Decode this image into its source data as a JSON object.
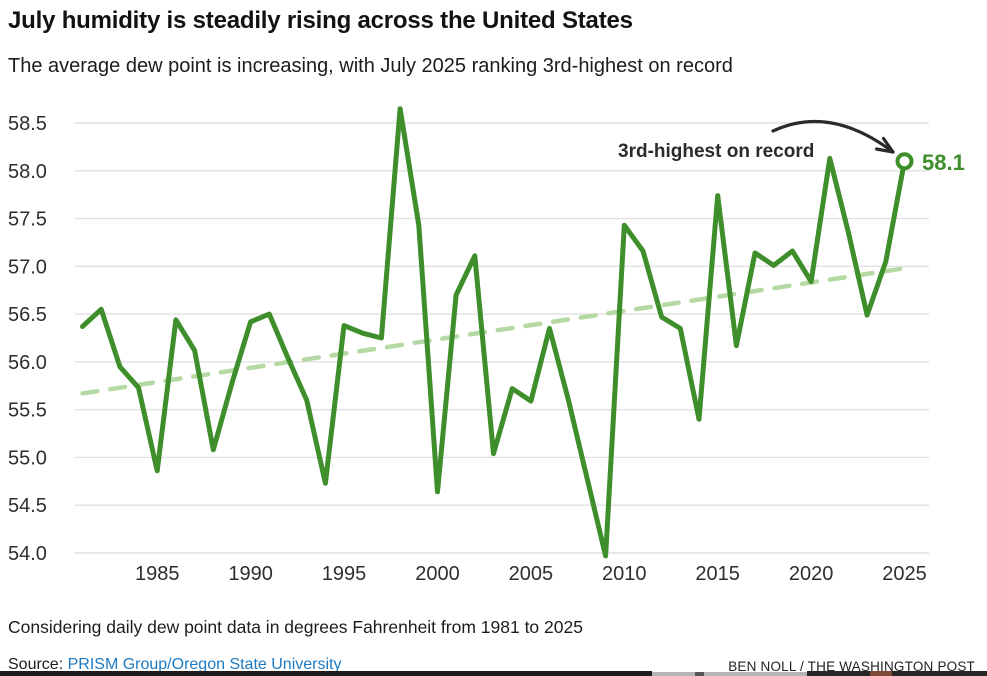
{
  "header": {
    "title": "July humidity is steadily rising across the United States",
    "subtitle": "The average dew point is increasing, with July 2025 ranking 3rd-highest on record"
  },
  "footer": {
    "note": "Considering daily dew point data in degrees Fahrenheit from 1981 to 2025",
    "source_label": "Source:",
    "source_link": "PRISM Group/Oregon State University",
    "credit": "BEN NOLL / THE WASHINGTON POST"
  },
  "chart_data": {
    "type": "line",
    "title": "July humidity is steadily rising across the United States",
    "subtitle": "The average dew point is increasing, with July 2025 ranking 3rd-highest on record",
    "xlabel": "",
    "ylabel": "",
    "x": [
      1981,
      1982,
      1983,
      1984,
      1985,
      1986,
      1987,
      1988,
      1989,
      1990,
      1991,
      1992,
      1993,
      1994,
      1995,
      1996,
      1997,
      1998,
      1999,
      2000,
      2001,
      2002,
      2003,
      2004,
      2005,
      2006,
      2007,
      2008,
      2009,
      2010,
      2011,
      2012,
      2013,
      2014,
      2015,
      2016,
      2017,
      2018,
      2019,
      2020,
      2021,
      2022,
      2023,
      2024,
      2025
    ],
    "values": [
      56.37,
      56.55,
      55.95,
      55.73,
      54.86,
      56.44,
      56.12,
      55.08,
      55.78,
      56.42,
      56.5,
      56.04,
      55.6,
      54.73,
      56.38,
      56.3,
      56.25,
      58.65,
      57.43,
      54.64,
      56.7,
      57.11,
      55.04,
      55.72,
      55.59,
      56.35,
      55.61,
      54.79,
      53.97,
      57.43,
      57.16,
      56.47,
      56.35,
      55.4,
      57.74,
      56.17,
      57.14,
      57.01,
      57.16,
      56.84,
      58.13,
      57.35,
      56.49,
      57.05,
      58.1
    ],
    "trend": {
      "style": "dashed",
      "x": [
        1981,
        2025
      ],
      "values": [
        55.67,
        56.98
      ]
    },
    "ylim": [
      54.0,
      58.5
    ],
    "yticks": [
      58.5,
      58.0,
      57.5,
      57.0,
      56.5,
      56.0,
      55.5,
      55.0,
      54.5,
      54.0
    ],
    "xticks": [
      1985,
      1990,
      1995,
      2000,
      2005,
      2010,
      2015,
      2020,
      2025
    ],
    "grid": true,
    "legend": false,
    "annotation": {
      "label": "3rd-highest on record",
      "point_label": "58.1",
      "point_year": 2025,
      "point_value": 58.1
    },
    "colors": {
      "line": "#3f8e2c",
      "trend": "#b5d9a3",
      "grid": "#e1e1e1",
      "axis_text": "#2e2e2e",
      "annotation_text": "#2b2b2b",
      "arrow": "#2b2b2b",
      "point_label": "#3f8e2c",
      "link": "#1e7ac0"
    }
  }
}
